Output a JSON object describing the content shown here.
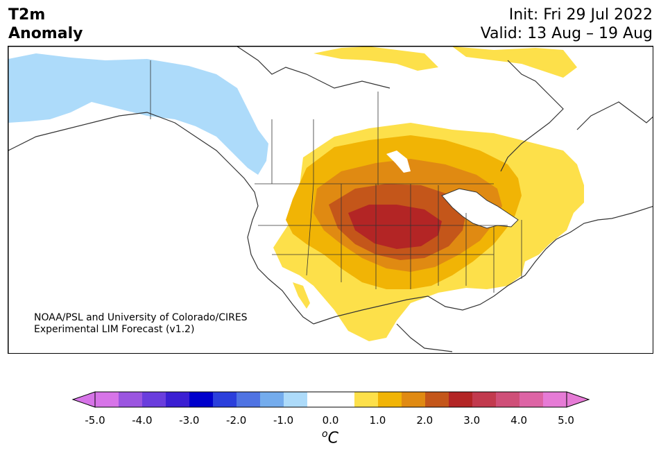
{
  "title": {
    "line1": "T2m",
    "line2": "Anomaly"
  },
  "init": "Init: Fri 29 Jul 2022",
  "valid": "Valid: 13 Aug – 19 Aug",
  "credit": {
    "line1": "NOAA/PSL and University of Colorado/CIRES",
    "line2": "Experimental LIM Forecast (v1.2)"
  },
  "colorbar": {
    "unit": "C",
    "unit_prefix": "o",
    "tick_labels": [
      "-5.0",
      "-4.0",
      "-3.0",
      "-2.0",
      "-1.0",
      "0.0",
      "1.0",
      "2.0",
      "3.0",
      "4.0",
      "5.0"
    ],
    "bins": [
      "#d774e8",
      "#9b55e0",
      "#6a3ddd",
      "#3b1fd3",
      "#0000cc",
      "#2b3fdc",
      "#4f73e3",
      "#74aced",
      "#addbfa",
      "#ffffff",
      "#ffffff",
      "#fde04a",
      "#f1b405",
      "#e08a12",
      "#c4561a",
      "#b32525",
      "#c23a4e",
      "#cf4f78",
      "#dd64a5",
      "#e67bd6"
    ]
  },
  "anomaly_colors": {
    "cold_1": "#addbfa",
    "warm_1": "#fde04a",
    "warm_2": "#f1b405",
    "warm_3": "#e08a12",
    "warm_4": "#c4561a",
    "warm_5": "#b32525"
  }
}
